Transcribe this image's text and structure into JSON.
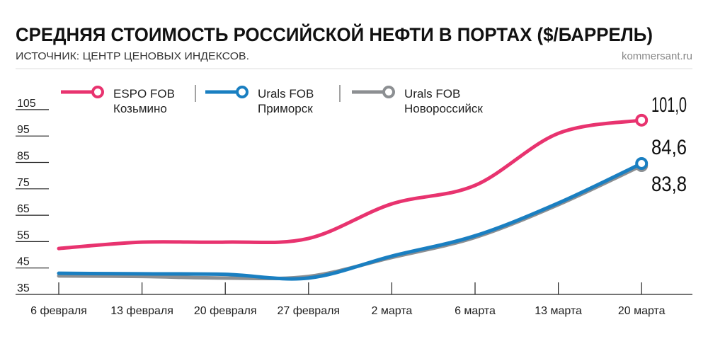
{
  "chart_data": {
    "type": "line",
    "title": "СРЕДНЯЯ СТОИМОСТЬ РОССИЙСКОЙ НЕФТИ В ПОРТАХ ($/БАРРЕЛЬ)",
    "subtitle": "ИСТОЧНИК: ЦЕНТР ЦЕНОВЫХ ИНДЕКСОВ.",
    "source_site": "kommersant.ru",
    "xlabel": "",
    "ylabel": "",
    "categories": [
      "6 февраля",
      "13 февраля",
      "20 февраля",
      "27 февраля",
      "2 марта",
      "6 марта",
      "13 марта",
      "20 марта"
    ],
    "y_ticks": [
      35,
      45,
      55,
      65,
      75,
      85,
      95,
      105
    ],
    "ylim": [
      35,
      105
    ],
    "grid": false,
    "legend_placement": "top",
    "series": [
      {
        "name": "ESPO FOB",
        "name2": "Козьмино",
        "color": "#e8336f",
        "values": [
          52.4,
          54.8,
          54.8,
          56.2,
          69.3,
          76.3,
          96.0,
          101.0
        ],
        "end_label": "101,0"
      },
      {
        "name": "Urals FOB",
        "name2": "Приморск",
        "color": "#1a7fc1",
        "values": [
          43.0,
          42.8,
          42.6,
          41.2,
          49.5,
          57.2,
          69.6,
          84.6
        ],
        "end_label": "84,6"
      },
      {
        "name": "Urals FOB",
        "name2": "Новороссийск",
        "color": "#8c8f92",
        "values": [
          42.0,
          41.8,
          41.2,
          41.8,
          49.0,
          56.6,
          69.0,
          83.8
        ],
        "end_label": "83,8"
      }
    ]
  }
}
